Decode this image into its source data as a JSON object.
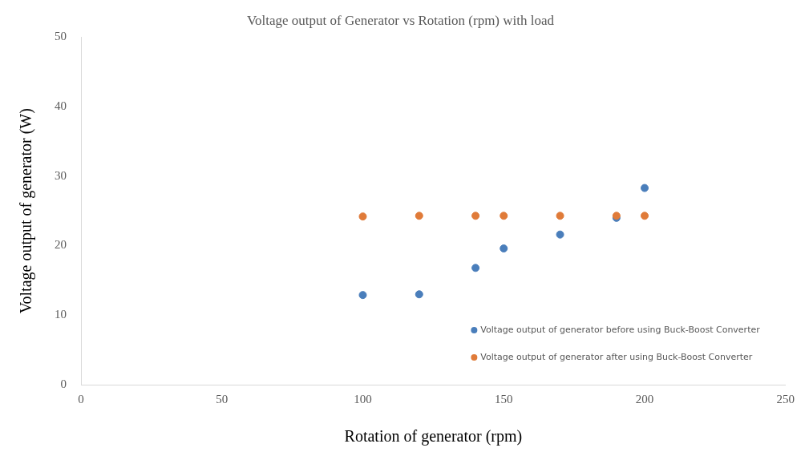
{
  "chart_data": {
    "type": "scatter",
    "title": "Voltage output of Generator vs Rotation (rpm) with load",
    "xlabel": "Rotation of generator (rpm)",
    "ylabel": "Voltage output of generator (W)",
    "x": [
      100,
      120,
      140,
      150,
      170,
      190,
      200
    ],
    "series": [
      {
        "name": "Voltage output of generator before using Buck-Boost Converter",
        "color": "#4a7ebb",
        "values": [
          12.9,
          13.0,
          16.8,
          19.6,
          21.6,
          24.0,
          28.3
        ]
      },
      {
        "name": "Voltage output of generator after using Buck-Boost Converter",
        "color": "#e07b39",
        "values": [
          24.2,
          24.3,
          24.3,
          24.3,
          24.3,
          24.3,
          24.3
        ]
      }
    ],
    "xlim": [
      0,
      250
    ],
    "xticks": [
      0,
      50,
      100,
      150,
      200,
      250
    ],
    "ylim": [
      0,
      50
    ],
    "yticks": [
      0,
      10,
      20,
      30,
      40,
      50
    ],
    "grid": false,
    "legend": "bottom right",
    "marker": "circle"
  }
}
